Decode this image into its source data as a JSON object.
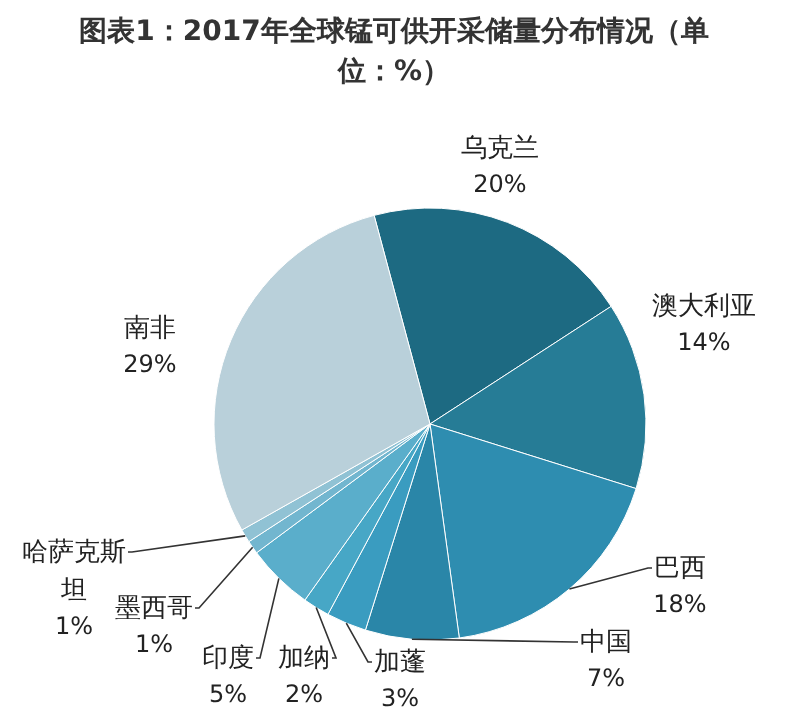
{
  "chart_data": {
    "type": "pie",
    "title": "图表1：2017年全球锰可供开采储量分布情况（单位：%）",
    "categories": [
      "乌克兰",
      "澳大利亚",
      "巴西",
      "中国",
      "加蓬",
      "加纳",
      "印度",
      "墨西哥",
      "哈萨克斯坦",
      "南非"
    ],
    "values": [
      20,
      14,
      18,
      7,
      3,
      2,
      5,
      1,
      1,
      29
    ],
    "colors": [
      "#1d6a82",
      "#267c96",
      "#2e8db0",
      "#2a86a8",
      "#3a9cc0",
      "#47a7c6",
      "#5aaecb",
      "#72b6cf",
      "#90c2d4",
      "#b9d0da"
    ],
    "value_labels": [
      "20%",
      "14%",
      "18%",
      "7%",
      "3%",
      "2%",
      "5%",
      "1%",
      "1%",
      "29%"
    ]
  }
}
